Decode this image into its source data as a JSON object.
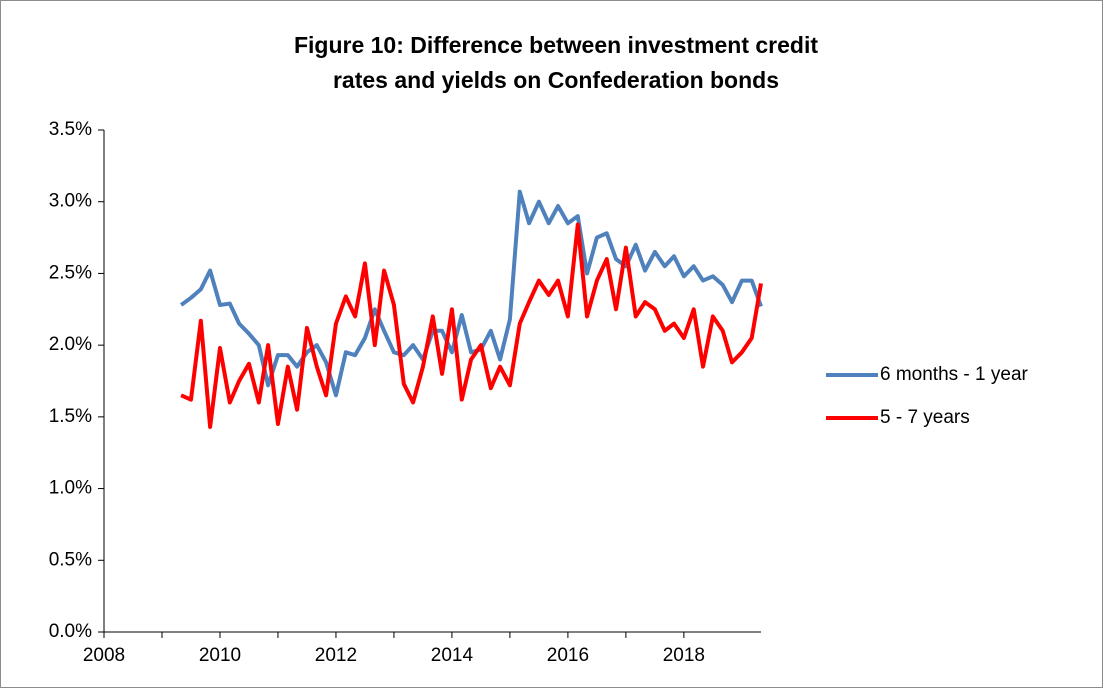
{
  "chart_data": {
    "type": "line",
    "title": "Figure 10: Difference between investment credit rates and yields on Confederation bonds",
    "x": [
      2009.33,
      2009.5,
      2009.67,
      2009.83,
      2010,
      2010.17,
      2010.33,
      2010.5,
      2010.67,
      2010.83,
      2011,
      2011.17,
      2011.33,
      2011.5,
      2011.67,
      2011.83,
      2012,
      2012.17,
      2012.33,
      2012.5,
      2012.67,
      2012.83,
      2013,
      2013.17,
      2013.33,
      2013.5,
      2013.67,
      2013.83,
      2014,
      2014.17,
      2014.33,
      2014.5,
      2014.67,
      2014.83,
      2015,
      2015.17,
      2015.33,
      2015.5,
      2015.67,
      2015.83,
      2016,
      2016.17,
      2016.33,
      2016.5,
      2016.67,
      2016.83,
      2017,
      2017.17,
      2017.33,
      2017.5,
      2017.67,
      2017.83,
      2018,
      2018.17,
      2018.33,
      2018.5,
      2018.67,
      2018.83,
      2019,
      2019.17,
      2019.33
    ],
    "series": [
      {
        "name": "6 months - 1 year",
        "color": "#4f81bd",
        "values": [
          2.28,
          2.33,
          2.39,
          2.52,
          2.28,
          2.29,
          2.15,
          2.08,
          2.0,
          1.72,
          1.93,
          1.93,
          1.85,
          1.95,
          2.0,
          1.88,
          1.65,
          1.95,
          1.93,
          2.05,
          2.25,
          2.1,
          1.95,
          1.93,
          2.0,
          1.9,
          2.1,
          2.1,
          1.95,
          2.21,
          1.95,
          1.97,
          2.1,
          1.9,
          2.18,
          3.07,
          2.85,
          3.0,
          2.85,
          2.97,
          2.85,
          2.9,
          2.5,
          2.75,
          2.78,
          2.6,
          2.55,
          2.7,
          2.52,
          2.65,
          2.55,
          2.62,
          2.48,
          2.55,
          2.45,
          2.48,
          2.42,
          2.3,
          2.45,
          2.45,
          2.27
        ]
      },
      {
        "name": "5 - 7 years",
        "color": "#ff0000",
        "values": [
          1.65,
          1.62,
          2.17,
          1.43,
          1.98,
          1.6,
          1.75,
          1.87,
          1.6,
          2.0,
          1.45,
          1.85,
          1.55,
          2.12,
          1.85,
          1.65,
          2.15,
          2.34,
          2.2,
          2.57,
          2.0,
          2.52,
          2.28,
          1.73,
          1.6,
          1.85,
          2.2,
          1.8,
          2.25,
          1.62,
          1.9,
          2.0,
          1.7,
          1.85,
          1.72,
          2.15,
          2.3,
          2.45,
          2.35,
          2.45,
          2.2,
          2.84,
          2.2,
          2.45,
          2.6,
          2.25,
          2.68,
          2.2,
          2.3,
          2.25,
          2.1,
          2.15,
          2.05,
          2.25,
          1.85,
          2.2,
          2.1,
          1.88,
          1.95,
          2.05,
          2.43
        ]
      }
    ],
    "xlim": [
      2008,
      2019.33
    ],
    "xticks": [
      2008,
      2010,
      2012,
      2014,
      2016,
      2018
    ],
    "ylim": [
      0,
      3.5
    ],
    "yticks": [
      {
        "value": 0,
        "label": "0.0%"
      },
      {
        "value": 0.5,
        "label": "0.5%"
      },
      {
        "value": 1,
        "label": "1.0%"
      },
      {
        "value": 1.5,
        "label": "1.5%"
      },
      {
        "value": 2,
        "label": "2.0%"
      },
      {
        "value": 2.5,
        "label": "2.5%"
      },
      {
        "value": 3,
        "label": "3.0%"
      },
      {
        "value": 3.5,
        "label": "3.5%"
      }
    ],
    "legend": "right",
    "grid": false
  }
}
